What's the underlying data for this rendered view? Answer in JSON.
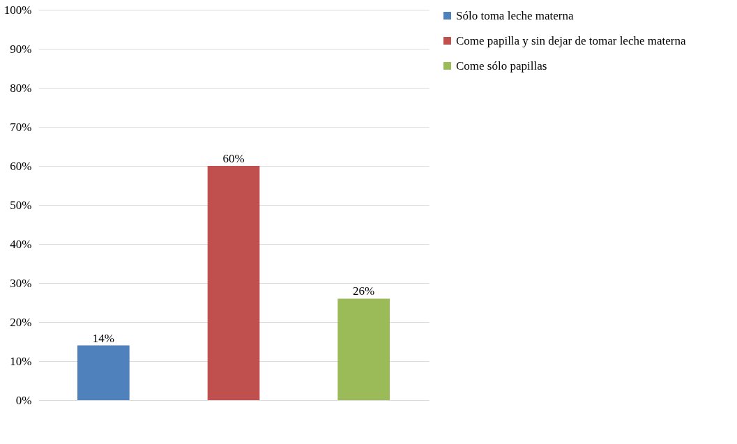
{
  "chart_data": {
    "type": "bar",
    "categories": [
      null,
      null,
      null
    ],
    "series": [
      {
        "name": "Sólo toma leche materna",
        "color": "#4f81bd",
        "values": [
          14,
          null,
          null
        ],
        "value_labels": [
          "14%",
          null,
          null
        ]
      },
      {
        "name": "Come papilla y sin dejar de tomar leche materna",
        "color": "#c0504d",
        "values": [
          null,
          60,
          null
        ],
        "value_labels": [
          null,
          "60%",
          null
        ]
      },
      {
        "name": "Come sólo papillas",
        "color": "#9bbb59",
        "values": [
          null,
          null,
          26
        ],
        "value_labels": [
          null,
          null,
          "26%"
        ]
      }
    ],
    "ylim": [
      0,
      100
    ],
    "yticks": [
      {
        "value": 0,
        "label": "0%"
      },
      {
        "value": 10,
        "label": "10%"
      },
      {
        "value": 20,
        "label": "20%"
      },
      {
        "value": 30,
        "label": "30%"
      },
      {
        "value": 40,
        "label": "40%"
      },
      {
        "value": 50,
        "label": "50%"
      },
      {
        "value": 60,
        "label": "60%"
      },
      {
        "value": 70,
        "label": "70%"
      },
      {
        "value": 80,
        "label": "80%"
      },
      {
        "value": 90,
        "label": "90%"
      },
      {
        "value": 100,
        "label": "100%"
      }
    ],
    "grid": "y",
    "legend": "right"
  }
}
